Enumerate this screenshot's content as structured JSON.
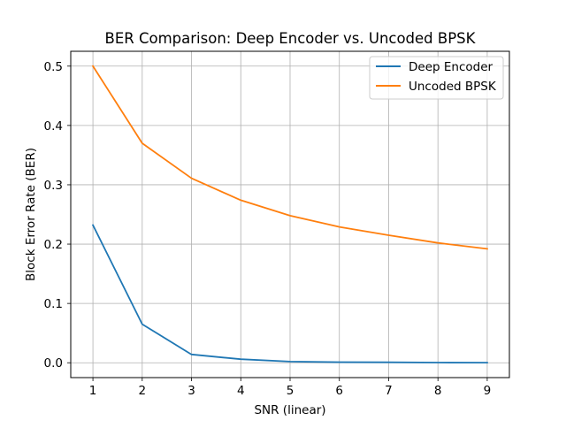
{
  "chart_data": {
    "type": "line",
    "title": "BER Comparison: Deep Encoder vs. Uncoded BPSK",
    "xlabel": "SNR (linear)",
    "ylabel": "Block Error Rate (BER)",
    "x": [
      1,
      2,
      3,
      4,
      5,
      6,
      7,
      8,
      9
    ],
    "xlim": [
      0.55,
      9.45
    ],
    "ylim": [
      -0.025,
      0.525
    ],
    "xticks": [
      1,
      2,
      3,
      4,
      5,
      6,
      7,
      8,
      9
    ],
    "yticks": [
      0.0,
      0.1,
      0.2,
      0.3,
      0.4,
      0.5
    ],
    "ytick_labels": [
      "0.0",
      "0.1",
      "0.2",
      "0.3",
      "0.4",
      "0.5"
    ],
    "grid": true,
    "legend_position": "top-right",
    "series": [
      {
        "name": "Deep Encoder",
        "color": "#1f77b4",
        "values": [
          0.232,
          0.065,
          0.014,
          0.006,
          0.002,
          0.001,
          0.0008,
          0.0003,
          0.0002
        ]
      },
      {
        "name": "Uncoded BPSK",
        "color": "#ff7f0e",
        "values": [
          0.5,
          0.37,
          0.311,
          0.274,
          0.248,
          0.229,
          0.215,
          0.202,
          0.192
        ]
      }
    ]
  }
}
